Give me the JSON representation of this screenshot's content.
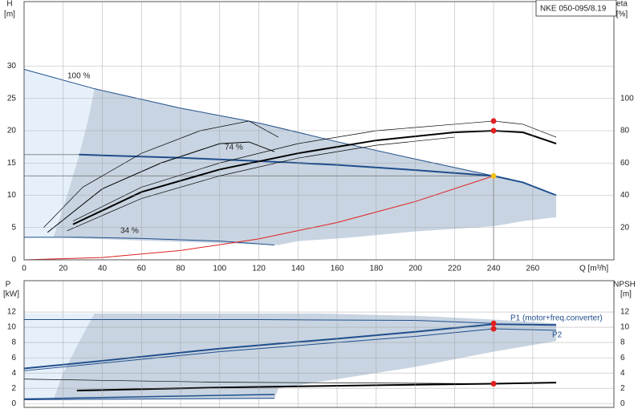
{
  "chart_data": [
    {
      "type": "line",
      "title": "NKE 050-095/8.19",
      "ylabel": "H",
      "yunit": "[m]",
      "y2label": "eta",
      "y2unit": "[%]",
      "xlabel": "Q [m³/h]",
      "xlim": [
        0,
        301.5
      ],
      "ylim": [
        0,
        40
      ],
      "y2lim": [
        0,
        160
      ],
      "xticks": [
        0,
        20,
        40,
        60,
        80,
        100,
        120,
        140,
        160,
        180,
        200,
        220,
        240,
        260
      ],
      "yticks": [
        0,
        5,
        10,
        15,
        20,
        25,
        30
      ],
      "y2ticks": [
        20,
        40,
        60,
        80,
        100
      ],
      "grid": true,
      "annotations": [
        "100 %",
        "74 %",
        "34 %"
      ],
      "series": [
        {
          "style": "area",
          "color": "#e6f0fa",
          "x": [
            0,
            36,
            33,
            28,
            22,
            15,
            0
          ],
          "values": [
            29.5,
            26.5,
            22,
            16,
            10,
            3.5,
            3.5
          ]
        },
        {
          "style": "area",
          "color": "#c8d4e1",
          "x": [
            36,
            80,
            120,
            160,
            200,
            240,
            255,
            272,
            272,
            255,
            240,
            200,
            165,
            140,
            130,
            80,
            30,
            15,
            22,
            28,
            33
          ],
          "values": [
            26.5,
            23.5,
            21.2,
            18.3,
            15.6,
            13,
            12,
            10,
            6.6,
            6,
            5.2,
            4.4,
            3.4,
            2.9,
            2.3,
            2.8,
            3.3,
            3.5,
            10,
            16,
            22
          ]
        },
        {
          "style": "line",
          "color": "#1f4e8c",
          "linewidth": 1,
          "x": [
            0,
            36,
            80,
            120,
            160,
            200,
            240
          ],
          "values": [
            29.5,
            26.5,
            23.5,
            21.2,
            18.3,
            15.6,
            13
          ]
        },
        {
          "style": "line",
          "color": "#888888",
          "linewidth": 1,
          "x": [
            0,
            28
          ],
          "values": [
            16.3,
            16.3
          ]
        },
        {
          "style": "line",
          "color": "#888888",
          "linewidth": 1,
          "x": [
            0,
            240
          ],
          "values": [
            13,
            13
          ]
        },
        {
          "style": "line",
          "color": "#888888",
          "linewidth": 1,
          "x": [
            240,
            240
          ],
          "values": [
            0,
            13
          ]
        },
        {
          "style": "line",
          "color": "#1f4e8c",
          "linewidth": 2,
          "x": [
            28,
            80,
            120,
            160,
            200,
            240,
            255,
            272
          ],
          "values": [
            16.3,
            15.8,
            15.3,
            14.7,
            13.9,
            13,
            12,
            10
          ]
        },
        {
          "style": "line",
          "color": "#1f4e8c",
          "linewidth": 1,
          "x": [
            0,
            30,
            60,
            100,
            128
          ],
          "values": [
            3.5,
            3.5,
            3.3,
            2.9,
            2.3
          ]
        },
        {
          "style": "line",
          "color": "#e02020",
          "linewidth": 1,
          "x": [
            0,
            40,
            80,
            120,
            160,
            200,
            240
          ],
          "values": [
            0,
            0.36,
            1.44,
            3.25,
            5.78,
            9.03,
            13
          ]
        },
        {
          "style": "line",
          "axis": "y2",
          "color": "#000000",
          "linewidth": 0.7,
          "x": [
            10,
            30,
            60,
            90,
            115,
            130
          ],
          "values": [
            20,
            45,
            66,
            80,
            86,
            76
          ]
        },
        {
          "style": "line",
          "axis": "y2",
          "color": "#000000",
          "linewidth": 1,
          "x": [
            12,
            40,
            70,
            100,
            115,
            128
          ],
          "values": [
            17,
            44,
            60,
            72,
            73,
            67
          ]
        },
        {
          "style": "line",
          "axis": "y2",
          "color": "#000000",
          "linewidth": 0.7,
          "x": [
            25,
            60,
            100,
            140,
            180,
            220,
            240,
            255,
            272
          ],
          "values": [
            24,
            45,
            60,
            72,
            80,
            84,
            86,
            84,
            76
          ]
        },
        {
          "style": "line",
          "axis": "y2",
          "color": "#000000",
          "linewidth": 0.7,
          "x": [
            22,
            60,
            100,
            140,
            180,
            220
          ],
          "values": [
            18,
            38,
            52,
            63,
            71,
            76
          ]
        },
        {
          "style": "line",
          "axis": "y2",
          "color": "#000000",
          "linewidth": 2,
          "x": [
            25,
            60,
            100,
            140,
            180,
            220,
            240,
            255,
            272
          ],
          "values": [
            22,
            42,
            56,
            66,
            74,
            79,
            80,
            79,
            72
          ]
        },
        {
          "style": "dots",
          "axis": "y2",
          "color": "#e02020",
          "x": [
            240,
            240
          ],
          "values": [
            80,
            86
          ]
        },
        {
          "style": "dots",
          "color": "#f0c020",
          "x": [
            240
          ],
          "values": [
            13
          ]
        }
      ]
    },
    {
      "type": "line",
      "ylabel": "P",
      "yunit": "[kW]",
      "y2label": "NPSH",
      "y2unit": "[m]",
      "xlim": [
        0,
        301.5
      ],
      "ylim": [
        -0.5,
        16.1
      ],
      "y2lim": [
        -0.5,
        16.1
      ],
      "yticks": [
        0,
        2,
        4,
        6,
        8,
        10,
        12
      ],
      "y2ticks": [
        0,
        2,
        4,
        6,
        8,
        10,
        12
      ],
      "grid": true,
      "annotations": [
        "P1 (motor+freq.converter)",
        "P2"
      ],
      "series": [
        {
          "style": "area",
          "color": "#e6f0fa",
          "x": [
            0,
            36,
            28,
            20,
            15,
            0
          ],
          "values": [
            11.8,
            11.8,
            8,
            4,
            0.5,
            0.5
          ]
        },
        {
          "style": "area",
          "color": "#c8d4e1",
          "x": [
            36,
            150,
            200,
            240,
            272,
            272,
            240,
            200,
            160,
            130,
            128,
            30,
            15,
            20,
            28
          ],
          "values": [
            11.8,
            11.8,
            11.5,
            11,
            10.5,
            8.2,
            6.8,
            4.8,
            3.2,
            2,
            0.6,
            0.5,
            0.5,
            4,
            8
          ]
        },
        {
          "style": "line",
          "color": "#1f4e8c",
          "linewidth": 1,
          "x": [
            0,
            120,
            200,
            240
          ],
          "values": [
            11,
            11,
            10.9,
            10.5
          ]
        },
        {
          "style": "line",
          "color": "#1f4e8c",
          "linewidth": 2,
          "x": [
            0,
            40,
            100,
            160,
            200,
            240,
            272
          ],
          "values": [
            4.6,
            5.6,
            7.2,
            8.5,
            9.4,
            10.4,
            10.3
          ]
        },
        {
          "style": "line",
          "color": "#1f4e8c",
          "linewidth": 1,
          "x": [
            0,
            100,
            200,
            240,
            272
          ],
          "values": [
            4.3,
            6.8,
            8.8,
            9.8,
            9.6
          ]
        },
        {
          "style": "line",
          "color": "#1f4e8c",
          "linewidth": 1.5,
          "x": [
            0,
            128
          ],
          "values": [
            0.6,
            1.2
          ]
        },
        {
          "style": "line",
          "color": "#1f4e8c",
          "linewidth": 1,
          "x": [
            0,
            128
          ],
          "values": [
            0.5,
            0.7
          ]
        },
        {
          "style": "line",
          "axis": "y2",
          "color": "#000000",
          "linewidth": 0.7,
          "x": [
            0,
            100,
            240
          ],
          "values": [
            3.2,
            2.8,
            2.6
          ]
        },
        {
          "style": "line",
          "axis": "y2",
          "color": "#000000",
          "linewidth": 2,
          "x": [
            27,
            100,
            180,
            240,
            272
          ],
          "values": [
            1.7,
            2.1,
            2.4,
            2.6,
            2.75
          ]
        },
        {
          "style": "dots",
          "color": "#e02020",
          "x": [
            240,
            240
          ],
          "values": [
            10.5,
            9.8
          ]
        },
        {
          "style": "dots",
          "axis": "y2",
          "color": "#e02020",
          "x": [
            240
          ],
          "values": [
            2.6
          ]
        }
      ]
    }
  ]
}
